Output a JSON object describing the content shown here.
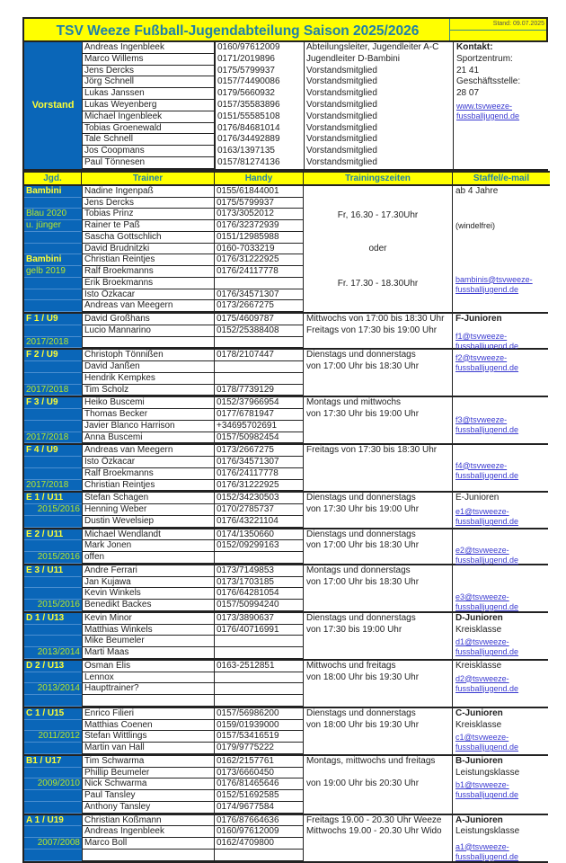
{
  "title": "TSV Weeze Fußball-Jugendabteilung Saison 2025/2026",
  "stand": "Stand: 09.07.2025",
  "vorstand": {
    "label": "Vorstand",
    "members": [
      {
        "name": "Andreas Ingenbleek",
        "phone": "0160/97612009",
        "role": "Abteilungsleiter, Jugendleiter A-C"
      },
      {
        "name": "Marco Willems",
        "phone": "0171/2019896",
        "role": "Jugendleiter D-Bambini"
      },
      {
        "name": "Jens Dercks",
        "phone": "0175/5799937",
        "role": "Vorstandsmitglied"
      },
      {
        "name": "Jörg Schnell",
        "phone": "0157/74490086",
        "role": "Vorstandsmitglied"
      },
      {
        "name": "Lukas Janssen",
        "phone": "0179/5660932",
        "role": "Vorstandsmitglied"
      },
      {
        "name": "Lukas Weyenberg",
        "phone": "0157/35583896",
        "role": "Vorstandsmitglied"
      },
      {
        "name": "Michael Ingenbleek",
        "phone": "0151/55585108",
        "role": "Vorstandsmitglied"
      },
      {
        "name": "Tobias Groenewald",
        "phone": "0176/84681014",
        "role": "Vorstandsmitglied"
      },
      {
        "name": "Tale Schnell",
        "phone": "0176/34492889",
        "role": "Vorstandsmitglied"
      },
      {
        "name": "Jos Coopmans",
        "phone": "0163/1397135",
        "role": "Vorstandsmitglied"
      },
      {
        "name": "Paul Tönnesen",
        "phone": "0157/81274136",
        "role": "Vorstandsmitglied"
      }
    ],
    "contact": [
      "Kontakt:",
      "Sportzentrum:",
      "21 41",
      "Geschäftsstelle:",
      "28 07",
      "www.tsvweeze-fussballjugend.de"
    ]
  },
  "headers": [
    "Jgd.",
    "Trainer",
    "Handy",
    "Trainingszeiten",
    "Staffel/e-mail"
  ],
  "colors": {
    "blue": "#0a66b8",
    "yellow": "#ffff00",
    "header_text": "#1f80a8",
    "year_text": "#b9e82a",
    "link": "#3a3ad0"
  },
  "groups": [
    {
      "jgd": [
        "Bambini",
        "",
        "Blau 2020",
        "u. jünger",
        "",
        "",
        "Bambini",
        "gelb 2019",
        "",
        "",
        ""
      ],
      "trainers": [
        [
          "Nadine Ingenpaß",
          "0155/61844001"
        ],
        [
          "Jens Dercks",
          "0175/5799937"
        ],
        [
          "Tobias Prinz",
          "0173/3052012"
        ],
        [
          "Rainer te Paß",
          "0176/32372939"
        ],
        [
          "Sascha Gottschlich",
          "0151/12985988"
        ],
        [
          "David Brudnitzki",
          "0160-7033219"
        ],
        [
          "Christian Reintjes",
          "0176/31222925"
        ],
        [
          "Ralf Broekmanns",
          "0176/24117778"
        ],
        [
          "Erik Broekmanns",
          ""
        ],
        [
          "Isto Özkacar",
          "0176/34571307"
        ],
        [
          "Andreas van Meegern",
          "0173/2667275"
        ]
      ],
      "training": [
        "Fr, 16.30 - 17.30Uhr",
        "oder",
        "Fr. 17.30 - 18.30Uhr"
      ],
      "staffel": [
        "ab 4 Jahre",
        "(windelfrei)",
        "bambinis@tsvweeze-fussballjugend.de"
      ]
    },
    {
      "jgd": [
        "F 1 / U9",
        "",
        "2017/2018"
      ],
      "trainers": [
        [
          "David Großhans",
          "0175/4609787"
        ],
        [
          "Lucio Mannarino",
          "0152/25388408"
        ],
        [
          "",
          ""
        ]
      ],
      "training": [
        "Mittwochs von 17:00 bis 18:30 Uhr",
        "Freitags von 17:30 bis 19:00 Uhr"
      ],
      "staffel": [
        "F-Junioren",
        "f1@tsvweeze-fussballjugend.de"
      ]
    },
    {
      "jgd": [
        "F 2 / U9",
        "",
        "",
        "2017/2018"
      ],
      "trainers": [
        [
          "Christoph Tönnißen",
          "0178/2107447"
        ],
        [
          "David Janßen",
          ""
        ],
        [
          "Hendrik Kempkes",
          ""
        ],
        [
          "Tim Scholz",
          "0178/7739129"
        ]
      ],
      "training": [
        "Dienstags und donnerstags",
        "von 17:00 Uhr bis 18:30 Uhr"
      ],
      "staffel": [
        "f2@tsvweeze-fussballjugend.de"
      ]
    },
    {
      "jgd": [
        "F 3 /  U9",
        "",
        "",
        "2017/2018"
      ],
      "trainers": [
        [
          "Heiko Buscemi",
          "0152/37966954"
        ],
        [
          "Thomas Becker",
          "0177/6781947"
        ],
        [
          "Javier Blanco Harrison",
          " +34695702691"
        ],
        [
          "Anna Buscemi",
          "0157/50982454"
        ]
      ],
      "training": [
        "Montags und mittwochs",
        "von 17:30 Uhr bis 19:00 Uhr"
      ],
      "staffel": [
        "f3@tsvweeze-fussballjugend.de"
      ]
    },
    {
      "jgd": [
        "F 4 / U9",
        "",
        "",
        "2017/2018"
      ],
      "trainers": [
        [
          "Andreas van Meegern",
          "0173/2667275"
        ],
        [
          "Isto Özkacar",
          "0176/34571307"
        ],
        [
          "Ralf Broekmanns",
          "0176/24117778"
        ],
        [
          "Christian Reintjes",
          "0176/31222925"
        ]
      ],
      "training": [
        "Freitags von 17:30 bis 18:30 Uhr"
      ],
      "staffel": [
        "f4@tsvweeze-fussballjugend.de"
      ]
    },
    {
      "jgd": [
        "E 1 / U11",
        "2015/2016",
        ""
      ],
      "trainers": [
        [
          "Stefan Schagen",
          "0152/34230503"
        ],
        [
          "Henning Weber",
          "0170/2785737"
        ],
        [
          "Dustin Wevelsiep",
          "0176/43221104"
        ]
      ],
      "training": [
        "Dienstags und donnerstags",
        "von 17:30 Uhr bis 19:00 Uhr"
      ],
      "staffel": [
        "E-Junioren",
        "e1@tsvweeze-fussballjugend.de"
      ]
    },
    {
      "jgd": [
        "E 2 / U11",
        "",
        "2015/2016"
      ],
      "trainers": [
        [
          "Michael Wendlandt",
          "0174/1350660"
        ],
        [
          "Mark Jonen",
          "0152/09299163"
        ],
        [
          "offen",
          ""
        ]
      ],
      "training": [
        "Dienstags und donnerstags",
        "von 17:00 Uhr bis 18:30 Uhr"
      ],
      "staffel": [
        "e2@tsvweeze-fussballjugend.de"
      ]
    },
    {
      "jgd": [
        "E 3 / U11",
        "",
        "",
        "2015/2016"
      ],
      "trainers": [
        [
          "Andre Ferrari",
          "0173/7149853"
        ],
        [
          "Jan Kujawa",
          "0173/1703185"
        ],
        [
          "Kevin Winkels",
          "0176/64281054"
        ],
        [
          "Benedikt Backes",
          "0157/50994240"
        ]
      ],
      "training": [
        "Montags und donnerstags",
        "von 17:00 Uhr bis 18:30 Uhr"
      ],
      "staffel": [
        "e3@tsvweeze-fussballjugend.de"
      ]
    },
    {
      "jgd": [
        "D 1 / U13",
        "",
        "",
        "2013/2014"
      ],
      "trainers": [
        [
          "Kevin Minor",
          "0173/3890637"
        ],
        [
          "Matthias Winkels",
          "0176/40716991"
        ],
        [
          "Mike Beumeler",
          ""
        ],
        [
          "Marti Maas",
          ""
        ]
      ],
      "training": [
        "Dienstags und donnerstags",
        " von 17:30 bis 19:00 Uhr"
      ],
      "staffel": [
        "D-Junioren",
        "Kreisklasse",
        "d1@tsvweeze-fussballjugend.de"
      ]
    },
    {
      "jgd": [
        "D 2 / U13",
        "",
        "2013/2014",
        ""
      ],
      "trainers": [
        [
          "Osman Elis",
          "0163-2512851"
        ],
        [
          "Lennox",
          ""
        ],
        [
          "Haupttrainer?",
          ""
        ],
        [
          "",
          ""
        ]
      ],
      "training": [
        "Mittwochs und freitags",
        "von 18:00 Uhr bis 19:30 Uhr"
      ],
      "staffel": [
        "Kreisklasse",
        "d2@tsvweeze-fussballjugend.de"
      ]
    },
    {
      "jgd": [
        "C 1 / U15",
        "",
        "2011/2012",
        ""
      ],
      "trainers": [
        [
          "Enrico Filieri",
          "0157/56986200"
        ],
        [
          "Matthias Coenen",
          "0159/01939000"
        ],
        [
          "Stefan Wittlings",
          "0157/53416519"
        ],
        [
          "Martin van Hall",
          "0179/9775222"
        ]
      ],
      "training": [
        "Dienstags und donnerstags",
        "von 18:00 Uhr bis 19:30 Uhr"
      ],
      "staffel": [
        "C-Junioren",
        "Kreisklasse",
        "c1@tsvweeze-fussballjugend.de"
      ]
    },
    {
      "jgd": [
        "B1 / U17",
        "",
        "2009/2010",
        "",
        ""
      ],
      "trainers": [
        [
          "Tim Schwarma",
          "0162/2157761"
        ],
        [
          "Phillip Beumeler",
          "0173/6660450"
        ],
        [
          "Nick Schwarma",
          "0176/81465646"
        ],
        [
          "Paul Tansley",
          "0152/51692585"
        ],
        [
          "Anthony Tansley",
          "0174/9677584"
        ]
      ],
      "training": [
        "Montags, mittwochs und freitags",
        "von 19:00 Uhr bis 20:30 Uhr"
      ],
      "staffel": [
        "B-Junioren",
        "Leistungsklasse",
        "b1@tsvweeze-fussballjugend.de"
      ]
    },
    {
      "jgd": [
        "A 1 / U19",
        "",
        "2007/2008",
        ""
      ],
      "trainers": [
        [
          "Christian Koßmann",
          "0176/87664636"
        ],
        [
          "Andreas Ingenbleek",
          "0160/97612009"
        ],
        [
          "Marco Boll",
          "0162/4709800"
        ],
        [
          "",
          ""
        ]
      ],
      "training": [
        "Freitags 19.00 - 20.30 Uhr Weeze",
        "Mittwochs 19.00 - 20.30 Uhr Wido"
      ],
      "staffel": [
        "A-Junioren",
        "Leistungsklasse",
        "a1@tsvweeze-fussballjugend.de"
      ]
    }
  ]
}
